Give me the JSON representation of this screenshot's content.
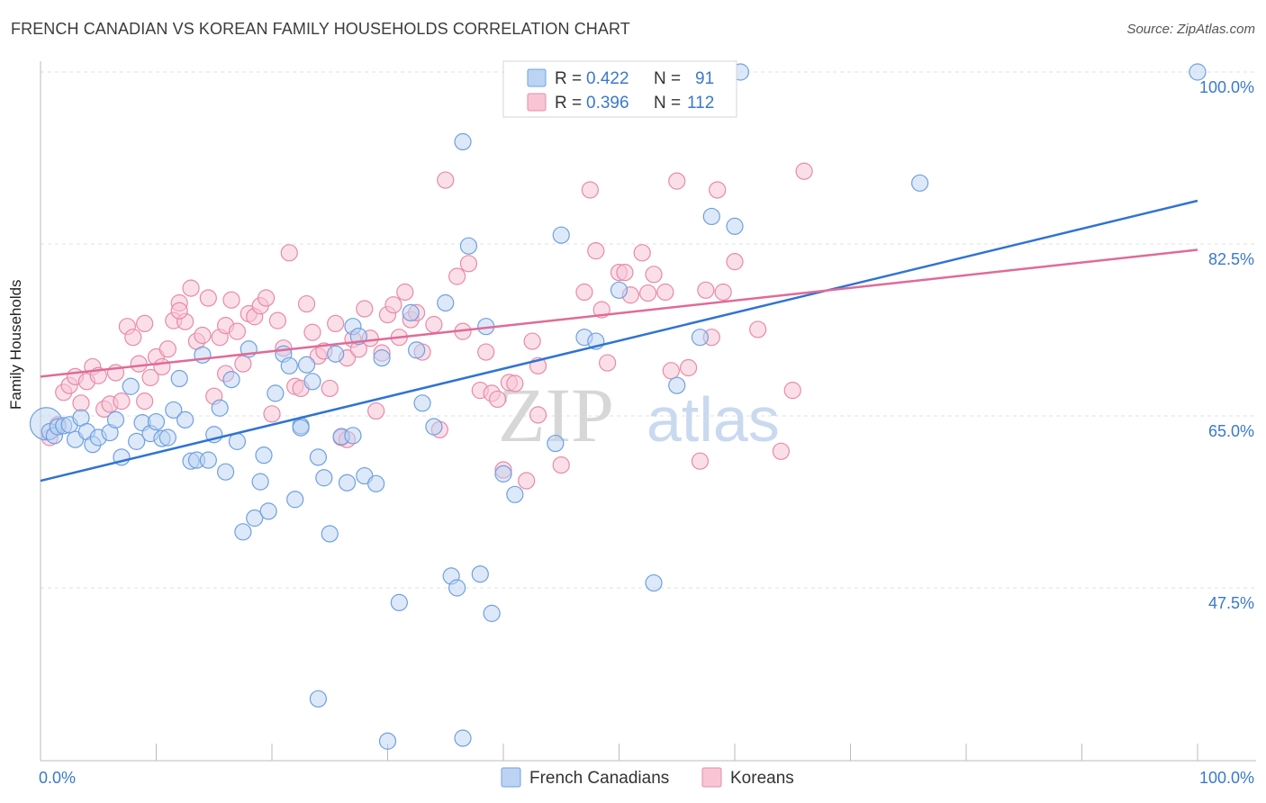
{
  "title": "FRENCH CANADIAN VS KOREAN FAMILY HOUSEHOLDS CORRELATION CHART",
  "source": "Source: ZipAtlas.com",
  "watermark": {
    "zip": "ZIP",
    "atlas": "atlas"
  },
  "colors": {
    "blue": "#6fa0e0",
    "blue_fill": "#bcd3f3",
    "blue_line": "#2f73d3",
    "pink": "#e88aa8",
    "pink_fill": "#f8c5d5",
    "pink_line": "#e06b96",
    "axis_text": "#3a78d0",
    "grid": "#dddddd"
  },
  "legend": {
    "rows": [
      {
        "r_label": "R = ",
        "r_value": "0.422",
        "n_label": "N = ",
        "n_value": "91"
      },
      {
        "r_label": "R = ",
        "r_value": "0.396",
        "n_label": "N = ",
        "n_value": "112"
      }
    ]
  },
  "chart_data": {
    "type": "scatter",
    "title": "FRENCH CANADIAN VS KOREAN FAMILY HOUSEHOLDS CORRELATION CHART",
    "xlabel": "",
    "ylabel": "Family Households",
    "xlim": [
      0,
      100
    ],
    "ylim": [
      34,
      101.5
    ],
    "x_tick_labels": [
      "0.0%",
      "100.0%"
    ],
    "y_tick_values": [
      47.5,
      65.0,
      82.5,
      100.0
    ],
    "y_tick_labels": [
      "47.5%",
      "65.0%",
      "82.5%",
      "100.0%"
    ],
    "grid": true,
    "legend_position": "top-center",
    "series": [
      {
        "name": "French Canadians",
        "color": "#6fa0e0",
        "trend": {
          "x": [
            0,
            100
          ],
          "y": [
            58.4,
            86.9
          ]
        },
        "points": [
          [
            0.5,
            64.2
          ],
          [
            0.8,
            63.4
          ],
          [
            1.2,
            63.0
          ],
          [
            1.5,
            63.9
          ],
          [
            2.0,
            64.0
          ],
          [
            2.5,
            64.1
          ],
          [
            3.0,
            62.6
          ],
          [
            3.5,
            64.8
          ],
          [
            4.0,
            63.4
          ],
          [
            4.5,
            62.1
          ],
          [
            5.0,
            62.8
          ],
          [
            6.0,
            63.3
          ],
          [
            6.5,
            64.6
          ],
          [
            7.0,
            60.8
          ],
          [
            7.8,
            68.0
          ],
          [
            8.3,
            62.4
          ],
          [
            8.8,
            64.3
          ],
          [
            9.5,
            63.2
          ],
          [
            10.0,
            64.4
          ],
          [
            10.5,
            62.7
          ],
          [
            11.0,
            62.8
          ],
          [
            11.5,
            65.6
          ],
          [
            12.0,
            68.8
          ],
          [
            12.5,
            64.6
          ],
          [
            13.0,
            60.4
          ],
          [
            13.5,
            60.5
          ],
          [
            14.0,
            71.2
          ],
          [
            14.5,
            60.5
          ],
          [
            15.0,
            63.1
          ],
          [
            15.5,
            65.8
          ],
          [
            16.0,
            59.3
          ],
          [
            16.5,
            68.7
          ],
          [
            17.0,
            62.4
          ],
          [
            17.5,
            53.2
          ],
          [
            18.0,
            71.8
          ],
          [
            18.5,
            54.6
          ],
          [
            19.0,
            58.3
          ],
          [
            19.3,
            61.0
          ],
          [
            19.7,
            55.3
          ],
          [
            20.3,
            67.3
          ],
          [
            21.0,
            71.3
          ],
          [
            21.5,
            70.1
          ],
          [
            22.0,
            56.5
          ],
          [
            22.5,
            64.0
          ],
          [
            23.0,
            70.2
          ],
          [
            23.5,
            68.5
          ],
          [
            24.0,
            60.8
          ],
          [
            24.5,
            58.7
          ],
          [
            25.0,
            53.0
          ],
          [
            25.5,
            71.3
          ],
          [
            26.0,
            62.9
          ],
          [
            26.5,
            58.2
          ],
          [
            27.0,
            74.1
          ],
          [
            27.5,
            73.1
          ],
          [
            28.0,
            58.9
          ],
          [
            29.0,
            58.1
          ],
          [
            29.5,
            70.9
          ],
          [
            31.0,
            46.0
          ],
          [
            32.0,
            75.5
          ],
          [
            32.5,
            71.7
          ],
          [
            33.0,
            66.3
          ],
          [
            34.0,
            63.9
          ],
          [
            35.0,
            76.5
          ],
          [
            35.5,
            48.7
          ],
          [
            36.0,
            47.5
          ],
          [
            36.5,
            92.9
          ],
          [
            37.0,
            82.3
          ],
          [
            38.0,
            48.9
          ],
          [
            38.5,
            74.1
          ],
          [
            39.0,
            44.9
          ],
          [
            40.0,
            59.1
          ],
          [
            41.0,
            57.0
          ],
          [
            44.5,
            62.2
          ],
          [
            45.0,
            83.4
          ],
          [
            47.0,
            73.0
          ],
          [
            47.5,
            100.0
          ],
          [
            48.0,
            72.6
          ],
          [
            50.0,
            77.8
          ],
          [
            53.0,
            48.0
          ],
          [
            55.0,
            68.1
          ],
          [
            57.0,
            73.0
          ],
          [
            58.0,
            85.3
          ],
          [
            60.0,
            84.3
          ],
          [
            60.5,
            100.0
          ],
          [
            76.0,
            88.7
          ],
          [
            100.0,
            100.0
          ],
          [
            30.0,
            31.9
          ],
          [
            36.5,
            32.2
          ],
          [
            24.0,
            36.2
          ],
          [
            27.0,
            63.0
          ],
          [
            22.5,
            63.8
          ]
        ],
        "sizes": {
          "large_point_index": 0
        }
      },
      {
        "name": "Koreans",
        "color": "#e88aa8",
        "trend": {
          "x": [
            0,
            100
          ],
          "y": [
            69.0,
            81.9
          ]
        },
        "points": [
          [
            0.8,
            62.8
          ],
          [
            1.5,
            64.1
          ],
          [
            2.0,
            67.4
          ],
          [
            2.5,
            68.1
          ],
          [
            3.0,
            69.0
          ],
          [
            3.5,
            66.3
          ],
          [
            4.0,
            68.5
          ],
          [
            4.5,
            70.0
          ],
          [
            5.0,
            69.1
          ],
          [
            5.5,
            65.7
          ],
          [
            6.0,
            66.2
          ],
          [
            6.5,
            69.4
          ],
          [
            7.0,
            66.5
          ],
          [
            7.5,
            74.1
          ],
          [
            8.0,
            73.0
          ],
          [
            8.5,
            70.3
          ],
          [
            9.0,
            74.4
          ],
          [
            9.5,
            68.9
          ],
          [
            10.0,
            71.0
          ],
          [
            10.5,
            70.0
          ],
          [
            11.0,
            71.8
          ],
          [
            11.5,
            74.7
          ],
          [
            12.0,
            76.5
          ],
          [
            12.5,
            74.6
          ],
          [
            13.0,
            78.0
          ],
          [
            13.5,
            72.6
          ],
          [
            14.0,
            73.2
          ],
          [
            14.5,
            77.0
          ],
          [
            15.0,
            67.0
          ],
          [
            15.5,
            73.0
          ],
          [
            16.0,
            74.2
          ],
          [
            16.5,
            76.8
          ],
          [
            17.0,
            73.6
          ],
          [
            17.5,
            70.3
          ],
          [
            18.0,
            75.4
          ],
          [
            18.5,
            75.1
          ],
          [
            19.0,
            76.2
          ],
          [
            19.5,
            77.0
          ],
          [
            20.0,
            65.2
          ],
          [
            20.5,
            74.7
          ],
          [
            21.0,
            71.9
          ],
          [
            21.5,
            81.6
          ],
          [
            22.0,
            68.0
          ],
          [
            22.5,
            67.8
          ],
          [
            23.0,
            76.4
          ],
          [
            23.5,
            73.5
          ],
          [
            24.0,
            71.1
          ],
          [
            24.5,
            71.6
          ],
          [
            25.0,
            67.8
          ],
          [
            25.5,
            74.4
          ],
          [
            26.0,
            62.8
          ],
          [
            26.5,
            70.9
          ],
          [
            27.0,
            72.8
          ],
          [
            27.5,
            71.8
          ],
          [
            28.0,
            75.9
          ],
          [
            28.5,
            72.9
          ],
          [
            29.0,
            65.5
          ],
          [
            29.5,
            71.4
          ],
          [
            30.0,
            75.3
          ],
          [
            30.5,
            76.3
          ],
          [
            31.0,
            73.0
          ],
          [
            31.5,
            77.6
          ],
          [
            32.0,
            74.8
          ],
          [
            32.5,
            75.5
          ],
          [
            33.0,
            71.5
          ],
          [
            34.0,
            74.3
          ],
          [
            34.5,
            63.6
          ],
          [
            35.0,
            89.0
          ],
          [
            36.0,
            79.2
          ],
          [
            36.5,
            73.6
          ],
          [
            37.0,
            80.5
          ],
          [
            38.0,
            67.6
          ],
          [
            38.5,
            71.5
          ],
          [
            39.0,
            67.3
          ],
          [
            39.5,
            66.7
          ],
          [
            40.0,
            59.5
          ],
          [
            40.5,
            68.4
          ],
          [
            41.0,
            68.3
          ],
          [
            42.0,
            58.4
          ],
          [
            42.5,
            72.6
          ],
          [
            43.0,
            70.1
          ],
          [
            45.0,
            60.0
          ],
          [
            47.0,
            77.6
          ],
          [
            47.5,
            88.0
          ],
          [
            48.0,
            81.8
          ],
          [
            48.5,
            75.8
          ],
          [
            49.0,
            70.4
          ],
          [
            50.0,
            79.6
          ],
          [
            50.5,
            79.6
          ],
          [
            51.0,
            77.3
          ],
          [
            52.0,
            81.6
          ],
          [
            52.5,
            77.5
          ],
          [
            53.0,
            79.4
          ],
          [
            54.0,
            77.6
          ],
          [
            54.5,
            69.6
          ],
          [
            55.0,
            88.9
          ],
          [
            56.0,
            69.9
          ],
          [
            57.0,
            60.4
          ],
          [
            57.5,
            77.8
          ],
          [
            58.0,
            73.0
          ],
          [
            58.5,
            88.0
          ],
          [
            59.0,
            77.6
          ],
          [
            60.0,
            80.7
          ],
          [
            62.0,
            73.8
          ],
          [
            64.0,
            61.4
          ],
          [
            65.0,
            67.6
          ],
          [
            66.0,
            89.9
          ],
          [
            26.5,
            62.6
          ],
          [
            12.0,
            75.7
          ],
          [
            9.0,
            66.5
          ],
          [
            16.0,
            69.3
          ],
          [
            43.0,
            65.1
          ]
        ]
      }
    ]
  },
  "axes": {
    "ylabel": "Family Households",
    "x_left": "0.0%",
    "x_right": "100.0%"
  },
  "bottom_legend": {
    "items": [
      "French Canadians",
      "Koreans"
    ]
  }
}
